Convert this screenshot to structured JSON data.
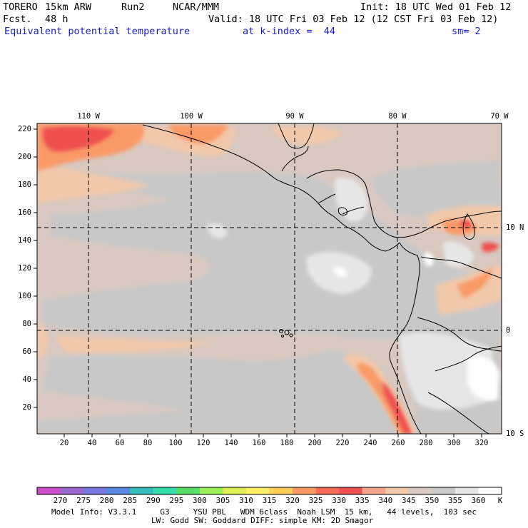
{
  "header": {
    "model": "TORERO",
    "resolution": "15km ARW",
    "run": "Run2",
    "org": "NCAR/MMM",
    "init": "Init: 18 UTC Wed 01 Feb 12",
    "fcst_label": "Fcst.",
    "fcst_value": "48 h",
    "valid": "Valid: 18 UTC Fri 03 Feb 12 (12 CST Fri 03 Feb 12)",
    "field_title": "Equivalent potential temperature",
    "level": "at k-index =  44",
    "smoothing": "sm= 2"
  },
  "axes": {
    "y_ticks": [
      "220",
      "200",
      "180",
      "160",
      "140",
      "120",
      "100",
      "80",
      "60",
      "40",
      "20"
    ],
    "x_ticks": [
      "20",
      "40",
      "60",
      "80",
      "100",
      "120",
      "140",
      "160",
      "180",
      "200",
      "220",
      "240",
      "260",
      "280",
      "300",
      "320"
    ],
    "lon_labels": [
      "110 W",
      "100 W",
      "90 W",
      "80 W",
      "70 W"
    ],
    "lat_labels": [
      "10 N",
      "0",
      "10 S"
    ]
  },
  "colorbar": {
    "unit": "K",
    "labels": [
      "270",
      "275",
      "280",
      "285",
      "290",
      "295",
      "300",
      "305",
      "310",
      "315",
      "320",
      "325",
      "330",
      "335",
      "340",
      "345",
      "350",
      "355",
      "360"
    ],
    "colors": [
      "#c84fc8",
      "#9966cc",
      "#7777dd",
      "#5588dd",
      "#33bbbb",
      "#33ddaa",
      "#55dd66",
      "#99ee55",
      "#ddee55",
      "#ffee66",
      "#ffcc55",
      "#f99a66",
      "#f46a55",
      "#ee5050",
      "#f7a58a",
      "#f2c8aa",
      "#d8c8c0",
      "#c8c8c8",
      "#e6e6e6",
      "#ffffff"
    ]
  },
  "footer": {
    "line1": "Model Info: V3.3.1     G3     YSU PBL   WDM 6class  Noah LSM  15 km,   44 levels,  103 sec",
    "line2": "LW: Godd SW: Goddard DIFF: simple KM: 2D Smagor"
  }
}
